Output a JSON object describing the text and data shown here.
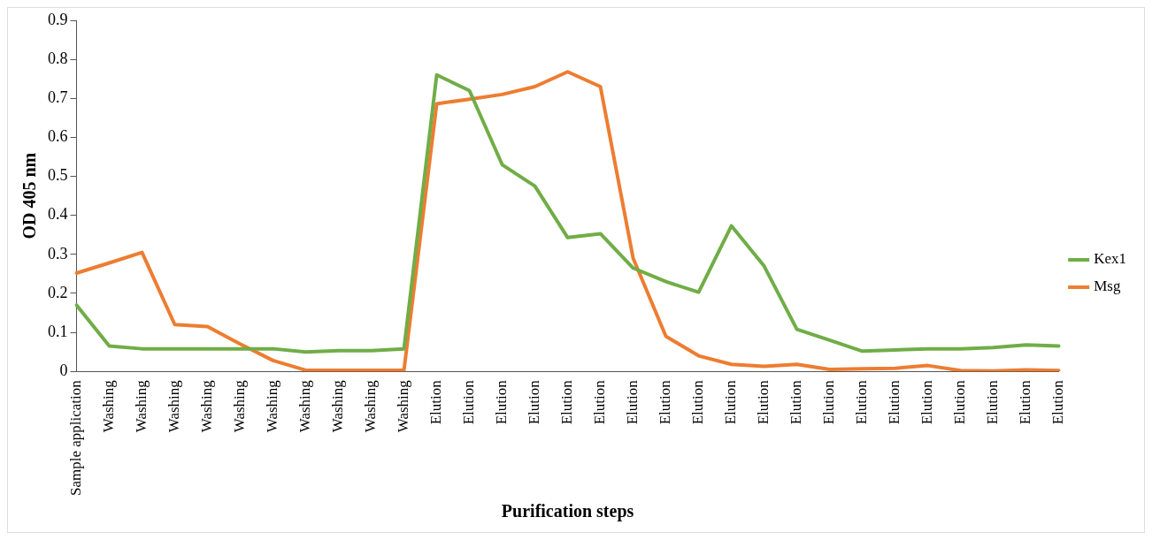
{
  "chart_data": {
    "type": "line",
    "xlabel": "Purification steps",
    "ylabel": "OD 405 nm",
    "categories": [
      "Sample application",
      "Washing",
      "Washing",
      "Washing",
      "Washing",
      "Washing",
      "Washing",
      "Washing",
      "Washing",
      "Washing",
      "Washing",
      "Elution",
      "Elution",
      "Elution",
      "Elution",
      "Elution",
      "Elution",
      "Elution",
      "Elution",
      "Elution",
      "Elution",
      "Elution",
      "Elution",
      "Elution",
      "Elution",
      "Elution",
      "Elution",
      "Elution",
      "Elution",
      "Elution",
      "Elution"
    ],
    "series": [
      {
        "name": "Kex1",
        "color": "#70ad47",
        "values": [
          0.17,
          0.065,
          0.058,
          0.058,
          0.058,
          0.058,
          0.058,
          0.05,
          0.053,
          0.053,
          0.058,
          0.76,
          0.72,
          0.53,
          0.475,
          0.343,
          0.353,
          0.265,
          0.23,
          0.203,
          0.373,
          0.27,
          0.108,
          0.08,
          0.052,
          0.055,
          0.058,
          0.058,
          0.061,
          0.068,
          0.065
        ]
      },
      {
        "name": "Msg",
        "color": "#ed7d31",
        "values": [
          0.252,
          0.278,
          0.305,
          0.12,
          0.115,
          0.07,
          0.028,
          0.003,
          0.003,
          0.003,
          0.003,
          0.686,
          0.698,
          0.71,
          0.73,
          0.768,
          0.73,
          0.29,
          0.09,
          0.04,
          0.018,
          0.013,
          0.018,
          0.005,
          0.007,
          0.008,
          0.015,
          0.002,
          0.001,
          0.004,
          0.002
        ]
      }
    ],
    "ylim": [
      0,
      0.9
    ],
    "yticks": [
      0,
      0.1,
      0.2,
      0.3,
      0.4,
      0.5,
      0.6,
      0.7,
      0.8,
      0.9
    ],
    "grid": false,
    "legend": "right",
    "marker": "none",
    "line_style": "solid"
  }
}
